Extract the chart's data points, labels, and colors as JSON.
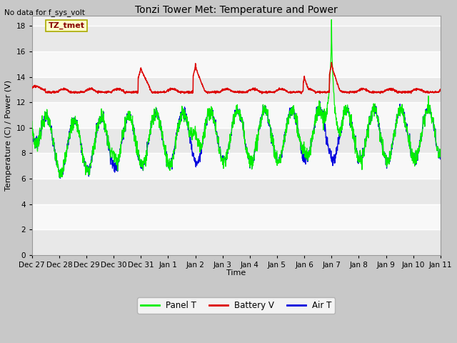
{
  "title": "Tonzi Tower Met: Temperature and Power",
  "top_left_text": "No data for f_sys_volt",
  "ylabel": "Temperature (C) / Power (V)",
  "xlabel": "Time",
  "legend_labels": [
    "Panel T",
    "Battery V",
    "Air T"
  ],
  "legend_colors": [
    "#00ee00",
    "#dd0000",
    "#0000dd"
  ],
  "yticks": [
    0,
    2,
    4,
    6,
    8,
    10,
    12,
    14,
    16,
    18
  ],
  "ylim": [
    0,
    18.8
  ],
  "xtick_labels": [
    "Dec 27",
    "Dec 28",
    "Dec 29",
    "Dec 30",
    "Dec 31",
    "Jan 1",
    "Jan 2",
    "Jan 3",
    "Jan 4",
    "Jan 5",
    "Jan 6",
    "Jan 7",
    "Jan 8",
    "Jan 9",
    "Jan 10",
    "Jan 11"
  ],
  "annotation_text": "TZ_tmet",
  "annotation_box_color": "#ffffcc",
  "annotation_box_edge": "#aaaa00",
  "plot_bg_color": "#f0f0f0",
  "grid_color": "#ffffff",
  "n_points": 2000
}
